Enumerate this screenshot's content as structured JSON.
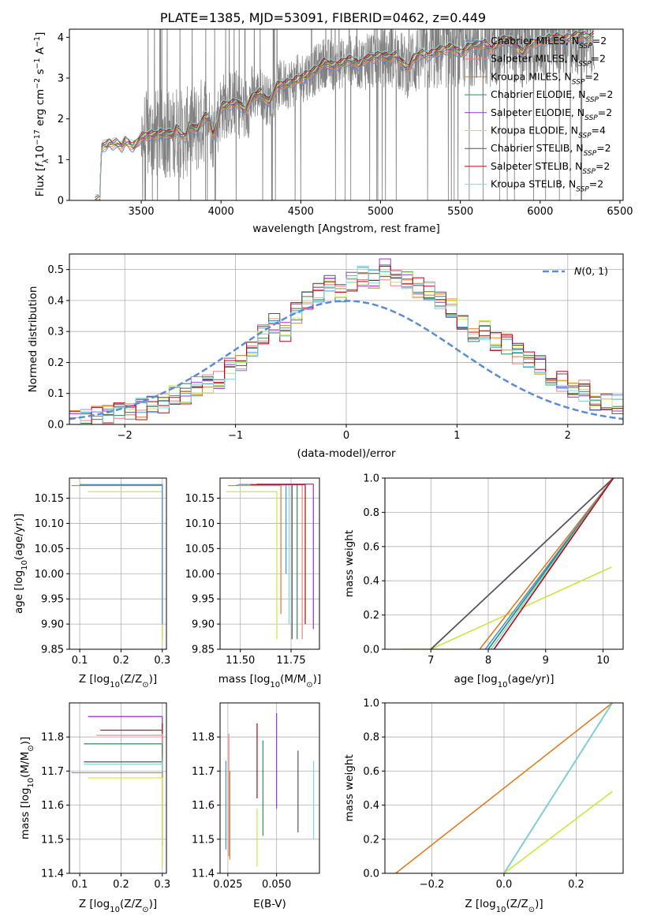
{
  "colors": {
    "Chabrier MILES": "#4a90d9",
    "Salpeter MILES": "#f08080",
    "Kroupa MILES": "#e07b20",
    "Chabrier ELODIE": "#2e8b57",
    "Salpeter ELODIE": "#9932cc",
    "Kroupa ELODIE": "#cce640",
    "Chabrier STELIB": "#555555",
    "Salpeter STELIB": "#c00010",
    "Kroupa STELIB": "#7fd8d8",
    "normal": "#5b8bd6",
    "data": "#808080"
  },
  "chart_data": [
    {
      "id": "spectrum",
      "type": "line",
      "title": "PLATE=1385, MJD=53091, FIBERID=0462, z=0.449",
      "xlabel": "wavelength [Angstrom, rest frame]",
      "ylabel_parts": [
        "Flux [",
        "f",
        "λ",
        "10",
        "−17",
        " erg cm",
        "−2",
        " s",
        "−1",
        " A",
        "−1",
        "]"
      ],
      "xlim": [
        3050,
        6520
      ],
      "ylim": [
        0,
        4.2
      ],
      "xticks": [
        "3500",
        "4000",
        "4500",
        "5000",
        "5500",
        "6000",
        "6500"
      ],
      "yticks": [
        "0",
        "1",
        "2",
        "3",
        "4"
      ],
      "grid": false,
      "legend_position": "top-right",
      "legend": [
        {
          "model": "Chabrier MILES",
          "n": "2"
        },
        {
          "model": "Salpeter MILES",
          "n": "2"
        },
        {
          "model": "Kroupa MILES",
          "n": "2"
        },
        {
          "model": "Chabrier ELODIE",
          "n": "2"
        },
        {
          "model": "Salpeter ELODIE",
          "n": "2"
        },
        {
          "model": "Kroupa ELODIE",
          "n": "4"
        },
        {
          "model": "Chabrier STELIB",
          "n": "2"
        },
        {
          "model": "Salpeter STELIB",
          "n": "2"
        },
        {
          "model": "Kroupa STELIB",
          "n": "2"
        }
      ],
      "model_curve": {
        "x": [
          3210,
          3240,
          3250,
          3260,
          3280,
          3300,
          3320,
          3350,
          3380,
          3400,
          3420,
          3450,
          3480,
          3500,
          3550,
          3600,
          3650,
          3700,
          3720,
          3750,
          3780,
          3800,
          3850,
          3880,
          3900,
          3930,
          3950,
          3970,
          4000,
          4050,
          4100,
          4150,
          4200,
          4250,
          4300,
          4350,
          4400,
          4450,
          4500,
          4550,
          4600,
          4650,
          4700,
          4750,
          4800,
          4850,
          4861,
          4900,
          4950,
          5000,
          5050,
          5100,
          5150,
          5175,
          5200,
          5250,
          5300,
          5350,
          5400,
          5450,
          5500,
          5550,
          5600,
          5650,
          5700,
          5750,
          5800,
          5850,
          5890,
          5900,
          5950,
          6000,
          6050,
          6100,
          6150,
          6200,
          6250,
          6300,
          6340
        ],
        "y": [
          0,
          0,
          1.3,
          1.35,
          1.33,
          1.42,
          1.38,
          1.4,
          1.32,
          1.45,
          1.42,
          1.3,
          1.45,
          1.55,
          1.6,
          1.62,
          1.65,
          1.6,
          1.78,
          1.62,
          1.55,
          1.85,
          1.72,
          1.95,
          2.05,
          2.0,
          1.55,
          1.8,
          2.3,
          2.35,
          2.4,
          2.2,
          2.55,
          2.65,
          2.4,
          2.8,
          2.85,
          2.9,
          3.0,
          3.1,
          3.2,
          3.4,
          3.3,
          3.35,
          3.45,
          3.4,
          3.3,
          3.45,
          3.5,
          3.55,
          3.5,
          3.55,
          3.3,
          3.25,
          3.45,
          3.6,
          3.55,
          3.65,
          3.7,
          3.75,
          3.6,
          3.75,
          3.8,
          3.85,
          3.7,
          3.9,
          3.95,
          3.8,
          3.6,
          3.7,
          3.85,
          3.9,
          3.95,
          4.0,
          3.95,
          4.0,
          4.05,
          4.0,
          4.05
        ]
      }
    },
    {
      "id": "residuals",
      "type": "line",
      "xlabel": "(data-model)/error",
      "ylabel": "Normed distribution",
      "xlim": [
        -2.5,
        2.5
      ],
      "ylim": [
        0,
        0.55
      ],
      "xticks": [
        "−2",
        "−1",
        "0",
        "1",
        "2"
      ],
      "yticks": [
        "0.0",
        "0.1",
        "0.2",
        "0.3",
        "0.4",
        "0.5"
      ],
      "grid": true,
      "legend_position": "top-right",
      "legend": [
        "N(0,1)"
      ],
      "hist_bin_width": 0.1,
      "hist_base": [
        0.01,
        0.02,
        0.03,
        0.035,
        0.04,
        0.045,
        0.05,
        0.06,
        0.07,
        0.09,
        0.1,
        0.12,
        0.13,
        0.15,
        0.18,
        0.2,
        0.24,
        0.29,
        0.33,
        0.3,
        0.36,
        0.4,
        0.42,
        0.45,
        0.43,
        0.46,
        0.48,
        0.47,
        0.5,
        0.48,
        0.46,
        0.44,
        0.43,
        0.4,
        0.38,
        0.34,
        0.29,
        0.3,
        0.27,
        0.26,
        0.23,
        0.2,
        0.19,
        0.16,
        0.14,
        0.12,
        0.11,
        0.08,
        0.07,
        0.06,
        0.05,
        0.04,
        0.03,
        0.02
      ],
      "hist_start": -2.5
    },
    {
      "id": "age_vs_Z",
      "type": "scatter",
      "xlabel_parts": [
        "Z [log",
        "10",
        "(Z/Z",
        "⊙",
        ")]"
      ],
      "ylabel_parts": [
        "age  [log",
        "10",
        "(age/yr)]"
      ],
      "xlim": [
        0.075,
        0.31
      ],
      "ylim": [
        9.85,
        10.19
      ],
      "xticks": [
        "0.1",
        "0.2",
        "0.3"
      ],
      "yticks": [
        "9.85",
        "9.90",
        "9.95",
        "10.00",
        "10.05",
        "10.10",
        "10.15"
      ],
      "grid": true,
      "points": [
        {
          "model": "Kroupa MILES",
          "x": 0.3,
          "y": 10.175,
          "xlo": 0.08,
          "xhi": 0.3,
          "ylo": 9.87,
          "yhi": 10.175
        },
        {
          "model": "Kroupa ELODIE",
          "x": 0.3,
          "y": 10.163,
          "xlo": 0.12,
          "xhi": 0.3,
          "ylo": 9.86,
          "yhi": 10.163
        },
        {
          "model": "Chabrier STELIB",
          "x": 0.3,
          "y": 10.177,
          "xlo": 0.1,
          "xhi": 0.3,
          "ylo": 9.9,
          "yhi": 10.177
        },
        {
          "model": "Kroupa STELIB",
          "x": 0.3,
          "y": 10.176,
          "xlo": 0.1,
          "xhi": 0.3,
          "ylo": 9.9,
          "yhi": 10.176
        },
        {
          "model": "Chabrier MILES",
          "x": 0.3,
          "y": 10.176,
          "xlo": 0.1,
          "xhi": 0.3,
          "ylo": 9.9,
          "yhi": 10.176
        }
      ]
    },
    {
      "id": "age_vs_mass",
      "type": "scatter",
      "xlabel_parts": [
        "mass [log",
        "10",
        "(M/M",
        "⊙",
        ")]"
      ],
      "ylabel_parts": [],
      "xlim": [
        11.4,
        11.89
      ],
      "ylim": [
        9.85,
        10.19
      ],
      "xticks": [
        "11.50",
        "11.75"
      ],
      "yticks": [
        "9.85",
        "9.90",
        "9.95",
        "10.00",
        "10.05",
        "10.10",
        "10.15"
      ],
      "grid": true,
      "points": [
        {
          "model": "Kroupa MILES",
          "x": 11.7,
          "y": 10.175,
          "xlo": 11.44,
          "xhi": 11.7,
          "ylo": 9.92,
          "yhi": 10.175
        },
        {
          "model": "Kroupa ELODIE",
          "x": 11.68,
          "y": 10.163,
          "xlo": 11.43,
          "xhi": 11.68,
          "ylo": 9.87,
          "yhi": 10.163
        },
        {
          "model": "Chabrier MILES",
          "x": 11.725,
          "y": 10.176,
          "xlo": 11.48,
          "xhi": 11.725,
          "ylo": 10.0,
          "yhi": 10.176
        },
        {
          "model": "Chabrier ELODIE",
          "x": 11.78,
          "y": 10.177,
          "xlo": 11.5,
          "xhi": 11.78,
          "ylo": 9.87,
          "yhi": 10.177
        },
        {
          "model": "Chabrier STELIB",
          "x": 11.755,
          "y": 10.177,
          "xlo": 11.49,
          "xhi": 11.755,
          "ylo": 9.87,
          "yhi": 10.177
        },
        {
          "model": "Kroupa STELIB",
          "x": 11.74,
          "y": 10.176,
          "xlo": 11.49,
          "xhi": 11.74,
          "ylo": 9.9,
          "yhi": 10.176
        },
        {
          "model": "Salpeter MILES",
          "x": 11.805,
          "y": 10.177,
          "xlo": 11.55,
          "xhi": 11.805,
          "ylo": 9.87,
          "yhi": 10.177
        },
        {
          "model": "Salpeter STELIB",
          "x": 11.82,
          "y": 10.177,
          "xlo": 11.55,
          "xhi": 11.82,
          "ylo": 9.9,
          "yhi": 10.177
        },
        {
          "model": "Salpeter ELODIE",
          "x": 11.86,
          "y": 10.178,
          "xlo": 11.58,
          "xhi": 11.86,
          "ylo": 9.89,
          "yhi": 10.178
        }
      ]
    },
    {
      "id": "weight_vs_age",
      "type": "line",
      "xlabel_parts": [
        "age  [log",
        "10",
        "(age/yr)]"
      ],
      "ylabel": "mass weight",
      "xlim": [
        6.2,
        10.35
      ],
      "ylim": [
        0,
        1
      ],
      "xticks": [
        "7",
        "8",
        "9",
        "10"
      ],
      "yticks": [
        "0.0",
        "0.2",
        "0.4",
        "0.6",
        "0.8",
        "1.0"
      ],
      "grid": true,
      "series": [
        {
          "model": "Kroupa ELODIE",
          "x": [
            6.5,
            7.0,
            10.15
          ],
          "y": [
            0,
            0,
            0.48
          ]
        },
        {
          "model": "Salpeter ELODIE",
          "x": [
            7.0,
            10.18
          ],
          "y": [
            0,
            1
          ]
        },
        {
          "model": "Chabrier STELIB",
          "x": [
            7.0,
            10.18
          ],
          "y": [
            0,
            1
          ]
        },
        {
          "model": "Kroupa MILES",
          "x": [
            7.85,
            10.18
          ],
          "y": [
            0,
            1
          ]
        },
        {
          "model": "Chabrier MILES",
          "x": [
            7.95,
            10.18
          ],
          "y": [
            0,
            1
          ]
        },
        {
          "model": "Chabrier ELODIE",
          "x": [
            8.0,
            10.18
          ],
          "y": [
            0,
            1
          ]
        },
        {
          "model": "Kroupa STELIB",
          "x": [
            8.05,
            10.18
          ],
          "y": [
            0,
            1
          ]
        },
        {
          "model": "Salpeter STELIB",
          "x": [
            8.1,
            10.18
          ],
          "y": [
            0,
            1
          ]
        }
      ]
    },
    {
      "id": "mass_vs_Z",
      "type": "scatter",
      "xlabel_parts": [
        "Z [log",
        "10",
        "(Z/Z",
        "⊙",
        ")]"
      ],
      "ylabel_parts": [
        "mass [log",
        "10",
        "(M/M",
        "⊙",
        ")]"
      ],
      "xlim": [
        0.075,
        0.31
      ],
      "ylim": [
        11.4,
        11.9
      ],
      "xticks": [
        "0.1",
        "0.2",
        "0.3"
      ],
      "yticks": [
        "11.4",
        "11.5",
        "11.6",
        "11.7",
        "11.8"
      ],
      "grid": true,
      "points": [
        {
          "model": "Salpeter ELODIE",
          "x": 0.3,
          "y": 11.86,
          "xlo": 0.12,
          "xhi": 0.3,
          "ylo": 11.8,
          "yhi": 11.86
        },
        {
          "model": "Salpeter STELIB",
          "x": 0.3,
          "y": 11.82,
          "xlo": 0.15,
          "xhi": 0.3,
          "ylo": 11.75,
          "yhi": 11.84
        },
        {
          "model": "Salpeter MILES",
          "x": 0.3,
          "y": 11.805,
          "xlo": 0.14,
          "xhi": 0.3,
          "ylo": 11.74,
          "yhi": 11.81
        },
        {
          "model": "Chabrier ELODIE",
          "x": 0.3,
          "y": 11.78,
          "xlo": 0.11,
          "xhi": 0.3,
          "ylo": 11.7,
          "yhi": 11.78
        },
        {
          "model": "Chabrier STELIB",
          "x": 0.3,
          "y": 11.727,
          "xlo": 0.11,
          "xhi": 0.3,
          "ylo": 11.5,
          "yhi": 11.73
        },
        {
          "model": "Kroupa STELIB",
          "x": 0.3,
          "y": 11.72,
          "xlo": 0.11,
          "xhi": 0.3,
          "ylo": 11.5,
          "yhi": 11.73
        },
        {
          "model": "Kroupa MILES",
          "x": 0.3,
          "y": 11.695,
          "xlo": 0.08,
          "xhi": 0.3,
          "ylo": 11.48,
          "yhi": 11.7
        },
        {
          "model": "Kroupa ELODIE",
          "x": 0.3,
          "y": 11.68,
          "xlo": 0.12,
          "xhi": 0.3,
          "ylo": 11.42,
          "yhi": 11.68
        }
      ]
    },
    {
      "id": "mass_vs_ebv",
      "type": "scatter",
      "xlabel": "E(B-V)",
      "xlim": [
        0.021,
        0.072
      ],
      "ylim": [
        11.4,
        11.9
      ],
      "xticks": [
        "0.025",
        "0.050"
      ],
      "yticks": [
        "11.4",
        "11.5",
        "11.6",
        "11.7",
        "11.8"
      ],
      "grid": true,
      "points": [
        {
          "model": "Chabrier MILES",
          "x": 0.024,
          "ylo": 11.47,
          "yhi": 11.73
        },
        {
          "model": "Salpeter MILES",
          "x": 0.0255,
          "ylo": 11.45,
          "yhi": 11.81
        },
        {
          "model": "Kroupa MILES",
          "x": 0.026,
          "ylo": 11.44,
          "yhi": 11.7
        },
        {
          "model": "Kroupa ELODIE",
          "x": 0.04,
          "ylo": 11.42,
          "yhi": 11.59
        },
        {
          "model": "Salpeter STELIB",
          "x": 0.04,
          "ylo": 11.62,
          "yhi": 11.84
        },
        {
          "model": "Chabrier ELODIE",
          "x": 0.043,
          "ylo": 11.51,
          "yhi": 11.79
        },
        {
          "model": "Salpeter ELODIE",
          "x": 0.05,
          "ylo": 11.59,
          "yhi": 11.87
        },
        {
          "model": "Chabrier STELIB",
          "x": 0.061,
          "ylo": 11.52,
          "yhi": 11.76
        },
        {
          "model": "Kroupa STELIB",
          "x": 0.069,
          "ylo": 11.5,
          "yhi": 11.73
        }
      ]
    },
    {
      "id": "weight_vs_Z",
      "type": "line",
      "xlabel_parts": [
        "Z [log",
        "10",
        "(Z/Z",
        "⊙",
        ")]"
      ],
      "ylabel": "mass weight",
      "xlim": [
        -0.33,
        0.33
      ],
      "ylim": [
        0,
        1
      ],
      "xticks": [
        "−0.2",
        "0.0",
        "0.2"
      ],
      "yticks": [
        "0.0",
        "0.2",
        "0.4",
        "0.6",
        "0.8",
        "1.0"
      ],
      "grid": true,
      "series": [
        {
          "model": "Kroupa MILES",
          "x": [
            -0.3,
            0.3
          ],
          "y": [
            0,
            1
          ]
        },
        {
          "model": "Chabrier MILES",
          "x": [
            0.0,
            0.3
          ],
          "y": [
            0,
            1
          ]
        },
        {
          "model": "Chabrier STELIB",
          "x": [
            0.0,
            0.3
          ],
          "y": [
            0,
            1
          ]
        },
        {
          "model": "Kroupa STELIB",
          "x": [
            0.0,
            0.3
          ],
          "y": [
            0,
            1
          ]
        },
        {
          "model": "Kroupa ELODIE",
          "x": [
            0.0,
            0.3
          ],
          "y": [
            0,
            0.48
          ]
        }
      ]
    }
  ]
}
